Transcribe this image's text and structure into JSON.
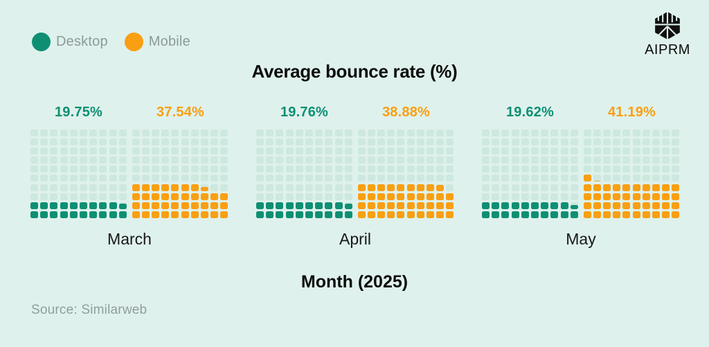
{
  "page": {
    "background_color": "#dff1ec"
  },
  "legend": {
    "items": [
      {
        "label": "Desktop",
        "color": "#0e8f73"
      },
      {
        "label": "Mobile",
        "color": "#f99f12"
      }
    ]
  },
  "branding": {
    "logo_icon": "aiprm-cube-logo",
    "logo_text": "AIPRM",
    "logo_color": "#101010"
  },
  "chart_data": {
    "type": "waffle",
    "title": "Average bounce rate (%)",
    "xlabel": "Month (2025)",
    "categories": [
      "March",
      "April",
      "May"
    ],
    "series": [
      {
        "name": "Desktop",
        "color": "#0e8f73",
        "values": [
          19.75,
          19.76,
          19.62
        ]
      },
      {
        "name": "Mobile",
        "color": "#f99f12",
        "values": [
          37.54,
          38.88,
          41.19
        ]
      }
    ],
    "value_labels": [
      [
        "19.75%",
        "37.54%"
      ],
      [
        "19.76%",
        "38.88%"
      ],
      [
        "19.62%",
        "41.19%"
      ]
    ],
    "grid": {
      "rows": 10,
      "cols": 10,
      "unit_percent_per_cell": 1,
      "fill_direction": "bottom-up-left-to-right",
      "empty_cell_color": "#cde8df"
    },
    "legend_position": "top-left",
    "gridlines": "none"
  },
  "footer": {
    "source": "Source: Similarweb"
  }
}
